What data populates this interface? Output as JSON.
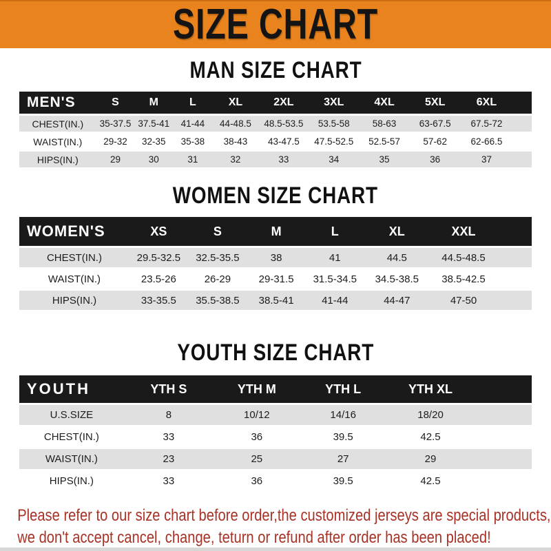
{
  "banner": {
    "title": "SIZE CHART"
  },
  "sections": [
    {
      "heading": "MAN SIZE CHART",
      "table": {
        "header": [
          "MEN'S",
          "S",
          "M",
          "L",
          "XL",
          "2XL",
          "3XL",
          "4XL",
          "5XL",
          "6XL"
        ],
        "rows": [
          {
            "label": "CHEST(IN.)",
            "values": [
              "35-37.5",
              "37.5-41",
              "41-44",
              "44-48.5",
              "48.5-53.5",
              "53.5-58",
              "58-63",
              "63-67.5",
              "67.5-72"
            ]
          },
          {
            "label": "WAIST(IN.)",
            "values": [
              "29-32",
              "32-35",
              "35-38",
              "38-43",
              "43-47.5",
              "47.5-52.5",
              "52.5-57",
              "57-62",
              "62-66.5"
            ]
          },
          {
            "label": "HIPS(IN.)",
            "values": [
              "29",
              "30",
              "31",
              "32",
              "33",
              "34",
              "35",
              "36",
              "37"
            ]
          }
        ]
      }
    },
    {
      "heading": "WOMEN SIZE CHART",
      "table": {
        "header": [
          "WOMEN'S",
          "XS",
          "S",
          "M",
          "L",
          "XL",
          "XXL"
        ],
        "rows": [
          {
            "label": "CHEST(IN.)",
            "values": [
              "29.5-32.5",
              "32.5-35.5",
              "38",
              "41",
              "44.5",
              "44.5-48.5"
            ]
          },
          {
            "label": "WAIST(IN.)",
            "values": [
              "23.5-26",
              "26-29",
              "29-31.5",
              "31.5-34.5",
              "34.5-38.5",
              "38.5-42.5"
            ]
          },
          {
            "label": "HIPS(IN.)",
            "values": [
              "33-35.5",
              "35.5-38.5",
              "38.5-41",
              "41-44",
              "44-47",
              "47-50"
            ]
          }
        ]
      }
    },
    {
      "heading": "YOUTH SIZE CHART",
      "table": {
        "header": [
          "YOUTH",
          "YTH S",
          "YTH M",
          "YTH L",
          "YTH XL"
        ],
        "rows": [
          {
            "label": "U.S.SIZE",
            "values": [
              "8",
              "10/12",
              "14/16",
              "18/20"
            ]
          },
          {
            "label": "CHEST(IN.)",
            "values": [
              "33",
              "36",
              "39.5",
              "42.5"
            ]
          },
          {
            "label": "WAIST(IN.)",
            "values": [
              "23",
              "25",
              "27",
              "29"
            ]
          },
          {
            "label": "HIPS(IN.)",
            "values": [
              "33",
              "36",
              "39.5",
              "42.5"
            ]
          }
        ]
      }
    }
  ],
  "footer": {
    "line1": "Please refer to our size chart before order,the customized jerseys are special products,",
    "line2": "we don't accept cancel, change, teturn or refund after order has been placed!"
  },
  "colors": {
    "banner_bg": "#E8831D",
    "header_bar": "#1A1A1A",
    "row_stripe": "#E0E0E0",
    "footer_text": "#A93226"
  }
}
